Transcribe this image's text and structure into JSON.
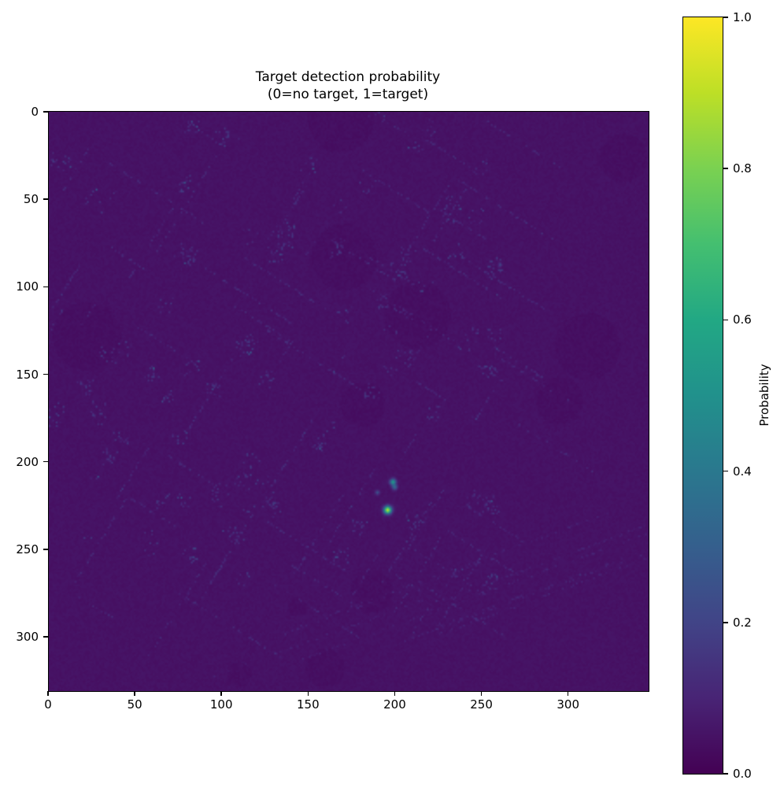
{
  "figure": {
    "background_color": "#ffffff",
    "title_line1": "Target detection probability",
    "title_line2": "(0=no target, 1=target)"
  },
  "chart_data": {
    "type": "heatmap",
    "title": "Target detection probability\n(0=no target, 1=target)",
    "description": "Dark viridis probability map (values near 0) over an aerial-scene texture with a few bright detection hotspots",
    "x_range": [
      0,
      346
    ],
    "y_range": [
      0,
      331
    ],
    "x_ticks": [
      0,
      50,
      100,
      150,
      200,
      250,
      300
    ],
    "y_ticks": [
      0,
      50,
      100,
      150,
      200,
      250,
      300
    ],
    "grid": false,
    "colormap": "viridis",
    "colormap_stops": [
      "#440154",
      "#482475",
      "#414487",
      "#355f8d",
      "#2a788e",
      "#21918c",
      "#22a884",
      "#44bf70",
      "#7ad151",
      "#bddf26",
      "#fde725"
    ],
    "background_probability": 0.05,
    "hotspots": [
      {
        "x": 195,
        "y": 227,
        "peak": 0.88,
        "sigma": 1.5
      },
      {
        "x": 198,
        "y": 211,
        "peak": 0.5,
        "sigma": 1.2
      },
      {
        "x": 199,
        "y": 214,
        "peak": 0.3,
        "sigma": 1.0
      },
      {
        "x": 189,
        "y": 217,
        "peak": 0.22,
        "sigma": 0.8
      }
    ],
    "texture": {
      "seed": 7,
      "base_value": 0.04,
      "noise_amplitude": 0.022,
      "speckle_clusters": 90,
      "street_segments": 70,
      "diagonal_streaks": 8,
      "dark_patches": 12
    },
    "colorbar": {
      "label": "Probability",
      "range": [
        0.0,
        1.0
      ],
      "tick_values": [
        0.0,
        0.2,
        0.4,
        0.6,
        0.8,
        1.0
      ],
      "tick_labels": [
        "0.0",
        "0.2",
        "0.4",
        "0.6",
        "0.8",
        "1.0"
      ],
      "position": "right"
    }
  }
}
